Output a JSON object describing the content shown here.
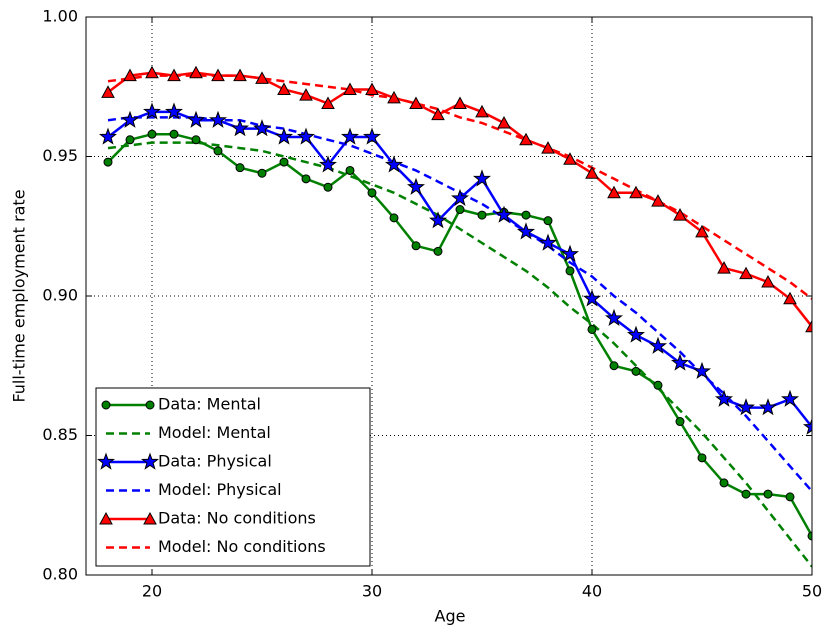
{
  "chart_data": {
    "type": "line",
    "xlabel": "Age",
    "ylabel": "Full-time employment rate",
    "x": [
      18,
      19,
      20,
      21,
      22,
      23,
      24,
      25,
      26,
      27,
      28,
      29,
      30,
      31,
      32,
      33,
      34,
      35,
      36,
      37,
      38,
      39,
      40,
      41,
      42,
      43,
      44,
      45,
      46,
      47,
      48,
      49,
      50
    ],
    "xlim": [
      17,
      50
    ],
    "xticks": [
      20,
      30,
      40,
      50
    ],
    "ylim": [
      0.8,
      1.0
    ],
    "yticks": [
      {
        "value": 0.8,
        "label": "0.80"
      },
      {
        "value": 0.85,
        "label": "0.85"
      },
      {
        "value": 0.9,
        "label": "0.90"
      },
      {
        "value": 0.95,
        "label": "0.95"
      },
      {
        "value": 1.0,
        "label": "1.00"
      }
    ],
    "grid": true,
    "legend": "lower left",
    "series": [
      {
        "name": "Data: Mental",
        "color": "#008000",
        "marker": "circle",
        "linestyle": "solid",
        "values": [
          0.948,
          0.956,
          0.958,
          0.958,
          0.956,
          0.952,
          0.946,
          0.944,
          0.948,
          0.942,
          0.939,
          0.945,
          0.937,
          0.928,
          0.918,
          0.916,
          0.931,
          0.929,
          0.93,
          0.929,
          0.927,
          0.909,
          0.888,
          0.875,
          0.873,
          0.868,
          0.855,
          0.842,
          0.833,
          0.829,
          0.829,
          0.828,
          0.814
        ]
      },
      {
        "name": "Model: Mental",
        "color": "#008000",
        "marker": "none",
        "linestyle": "dashed",
        "values": [
          0.953,
          0.954,
          0.955,
          0.955,
          0.955,
          0.954,
          0.953,
          0.952,
          0.95,
          0.948,
          0.946,
          0.943,
          0.94,
          0.937,
          0.933,
          0.929,
          0.924,
          0.919,
          0.914,
          0.909,
          0.903,
          0.896,
          0.89,
          0.883,
          0.875,
          0.867,
          0.859,
          0.851,
          0.842,
          0.833,
          0.823,
          0.813,
          0.803
        ]
      },
      {
        "name": "Data: Physical",
        "color": "#0000ff",
        "marker": "star",
        "linestyle": "solid",
        "values": [
          0.957,
          0.963,
          0.966,
          0.966,
          0.963,
          0.963,
          0.96,
          0.96,
          0.957,
          0.957,
          0.947,
          0.957,
          0.957,
          0.947,
          0.939,
          0.927,
          0.935,
          0.942,
          0.929,
          0.923,
          0.919,
          0.915,
          0.899,
          0.892,
          0.886,
          0.882,
          0.876,
          0.873,
          0.863,
          0.86,
          0.86,
          0.863,
          0.853
        ]
      },
      {
        "name": "Model: Physical",
        "color": "#0000ff",
        "marker": "none",
        "linestyle": "dashed",
        "values": [
          0.963,
          0.964,
          0.964,
          0.964,
          0.964,
          0.963,
          0.963,
          0.961,
          0.96,
          0.958,
          0.956,
          0.954,
          0.951,
          0.948,
          0.945,
          0.941,
          0.937,
          0.933,
          0.928,
          0.923,
          0.918,
          0.912,
          0.907,
          0.9,
          0.894,
          0.887,
          0.88,
          0.872,
          0.865,
          0.857,
          0.848,
          0.839,
          0.83
        ]
      },
      {
        "name": "Data: No conditions",
        "color": "#ff0000",
        "marker": "triangle",
        "linestyle": "solid",
        "values": [
          0.973,
          0.979,
          0.98,
          0.979,
          0.98,
          0.979,
          0.979,
          0.978,
          0.974,
          0.972,
          0.969,
          0.974,
          0.974,
          0.971,
          0.969,
          0.965,
          0.969,
          0.966,
          0.962,
          0.956,
          0.953,
          0.949,
          0.944,
          0.937,
          0.937,
          0.934,
          0.929,
          0.923,
          0.91,
          0.908,
          0.905,
          0.899,
          0.889
        ]
      },
      {
        "name": "Model: No conditions",
        "color": "#ff0000",
        "marker": "none",
        "linestyle": "dashed",
        "values": [
          0.977,
          0.978,
          0.979,
          0.979,
          0.979,
          0.979,
          0.979,
          0.978,
          0.977,
          0.976,
          0.975,
          0.974,
          0.972,
          0.971,
          0.969,
          0.967,
          0.964,
          0.962,
          0.959,
          0.956,
          0.953,
          0.95,
          0.946,
          0.942,
          0.938,
          0.934,
          0.93,
          0.925,
          0.92,
          0.915,
          0.91,
          0.905,
          0.899
        ]
      }
    ]
  }
}
